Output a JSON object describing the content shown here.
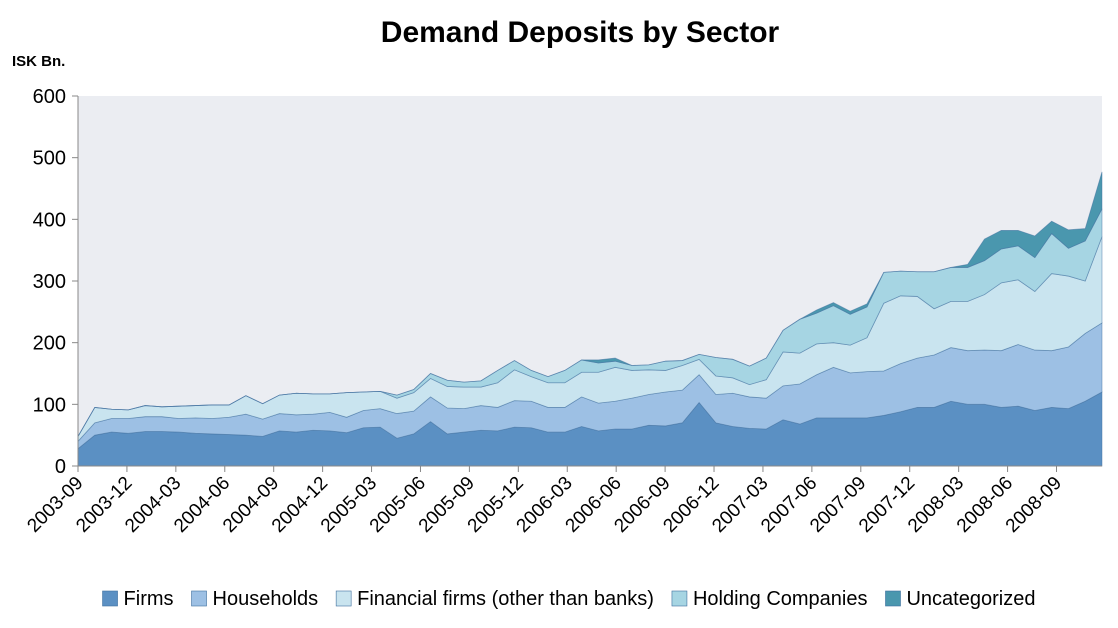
{
  "chart_data": {
    "type": "area",
    "stacked": true,
    "title": "Demand Deposits by Sector",
    "unit_label": "ISK Bn.",
    "ylim": [
      0,
      600
    ],
    "y_ticks": [
      "0",
      "100",
      "200",
      "300",
      "400",
      "500",
      "600"
    ],
    "x_tick_labels": [
      "2003-09",
      "2003-12",
      "2004-03",
      "2004-06",
      "2004-09",
      "2004-12",
      "2005-03",
      "2005-06",
      "2005-09",
      "2005-12",
      "2006-03",
      "2006-06",
      "2006-09",
      "2006-12",
      "2007-03",
      "2007-06",
      "2007-09",
      "2007-12",
      "2008-03",
      "2008-06",
      "2008-09"
    ],
    "grid": false,
    "legend_position": "bottom",
    "series": [
      {
        "name": "Firms",
        "color": "#5b90c3",
        "values": [
          28,
          50,
          55,
          53,
          56,
          56,
          55,
          53,
          52,
          51,
          50,
          48,
          57,
          55,
          58,
          57,
          54,
          62,
          63,
          45,
          52,
          72,
          52,
          55,
          58,
          57,
          63,
          62,
          55,
          55,
          64,
          57,
          60,
          60,
          66,
          65,
          70,
          103,
          70,
          64,
          61,
          60,
          75,
          68,
          78,
          78,
          78,
          78,
          82,
          88,
          95,
          95,
          105,
          100,
          100,
          95,
          97,
          90,
          95,
          93,
          105,
          120
        ]
      },
      {
        "name": "Households",
        "color": "#9dc0e4",
        "values": [
          12,
          20,
          22,
          24,
          24,
          24,
          22,
          25,
          25,
          28,
          34,
          28,
          28,
          28,
          26,
          30,
          25,
          28,
          30,
          40,
          37,
          40,
          42,
          38,
          40,
          38,
          43,
          43,
          40,
          40,
          48,
          45,
          45,
          50,
          50,
          55,
          53,
          45,
          46,
          54,
          51,
          50,
          55,
          65,
          70,
          82,
          73,
          75,
          72,
          78,
          80,
          85,
          87,
          87,
          88,
          92,
          100,
          98,
          92,
          100,
          110,
          112
        ]
      },
      {
        "name": "Financial firms (other than banks)",
        "color": "#c9e4ef",
        "values": [
          8,
          25,
          15,
          14,
          18,
          16,
          20,
          20,
          22,
          20,
          30,
          25,
          30,
          35,
          33,
          30,
          40,
          30,
          28,
          25,
          30,
          30,
          35,
          35,
          30,
          40,
          50,
          40,
          40,
          40,
          40,
          50,
          55,
          45,
          40,
          35,
          40,
          25,
          30,
          25,
          20,
          30,
          55,
          50,
          50,
          40,
          45,
          55,
          110,
          110,
          100,
          75,
          75,
          80,
          90,
          110,
          105,
          95,
          125,
          115,
          85,
          140
        ]
      },
      {
        "name": "Holding Companies",
        "color": "#a6d5e3",
        "values": [
          0,
          0,
          0,
          0,
          0,
          0,
          0,
          0,
          0,
          0,
          0,
          0,
          0,
          0,
          0,
          0,
          0,
          0,
          0,
          5,
          5,
          8,
          10,
          8,
          10,
          20,
          15,
          10,
          10,
          20,
          20,
          15,
          10,
          8,
          8,
          15,
          8,
          8,
          30,
          30,
          30,
          35,
          35,
          55,
          50,
          60,
          50,
          50,
          50,
          40,
          40,
          60,
          55,
          55,
          55,
          55,
          55,
          55,
          65,
          45,
          65,
          45
        ]
      },
      {
        "name": "Uncategorized",
        "color": "#4a97ae",
        "values": [
          0,
          0,
          0,
          0,
          0,
          0,
          0,
          0,
          0,
          0,
          0,
          0,
          0,
          0,
          0,
          0,
          0,
          0,
          0,
          0,
          0,
          0,
          0,
          0,
          0,
          0,
          0,
          0,
          0,
          0,
          0,
          5,
          5,
          0,
          0,
          0,
          0,
          0,
          0,
          0,
          0,
          0,
          0,
          0,
          5,
          5,
          5,
          5,
          0,
          0,
          0,
          0,
          0,
          5,
          35,
          30,
          25,
          35,
          20,
          30,
          20,
          60
        ]
      }
    ]
  }
}
